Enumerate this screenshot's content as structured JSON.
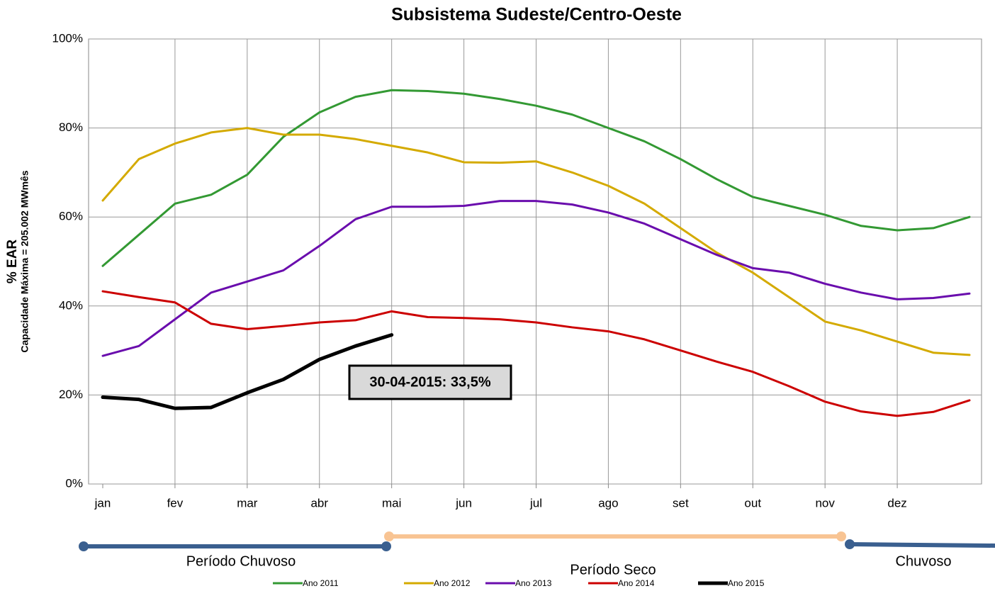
{
  "chart_data": {
    "type": "line",
    "title": "Subsistema Sudeste/Centro-Oeste",
    "y_label": "% EAR",
    "y_sublabel": "Capacidade Máxima = 205.002 MWmês",
    "categories": [
      "jan",
      null,
      "fev",
      null,
      "mar",
      null,
      "abr",
      null,
      "mai",
      null,
      "jun",
      null,
      "jul",
      null,
      "ago",
      null,
      "set",
      null,
      "out",
      null,
      "nov",
      null,
      "dez",
      null,
      null
    ],
    "ylim": [
      0,
      100
    ],
    "yticks": [
      {
        "value": 0,
        "label": "0%"
      },
      {
        "value": 20,
        "label": "20%"
      },
      {
        "value": 40,
        "label": "40%"
      },
      {
        "value": 60,
        "label": "60%"
      },
      {
        "value": 80,
        "label": "80%"
      },
      {
        "value": 100,
        "label": "100%"
      }
    ],
    "grid": true,
    "series": [
      {
        "name": "Ano 2011",
        "color": "#339933",
        "line_width": 3,
        "values": [
          49,
          56,
          63,
          65,
          69.5,
          78,
          83.5,
          87,
          88.5,
          88.3,
          87.7,
          86.5,
          85,
          83,
          80,
          77,
          73,
          68.5,
          64.5,
          62.5,
          60.5,
          58,
          57,
          57.5,
          60
        ]
      },
      {
        "name": "Ano 2012",
        "color": "#d4aa00",
        "line_width": 3,
        "values": [
          63.7,
          73,
          76.5,
          79,
          80,
          78.5,
          78.5,
          77.5,
          76,
          74.5,
          72.3,
          72.2,
          72.5,
          70,
          67,
          63,
          57.5,
          52,
          47.5,
          42,
          36.5,
          34.5,
          32,
          29.5,
          29
        ]
      },
      {
        "name": "Ano 2013",
        "color": "#6a0dad",
        "line_width": 3,
        "values": [
          28.8,
          31,
          37,
          43,
          45.5,
          48,
          53.5,
          59.5,
          62.3,
          62.3,
          62.5,
          63.6,
          63.6,
          62.8,
          61,
          58.5,
          55,
          51.5,
          48.5,
          47.5,
          45,
          43,
          41.5,
          41.8,
          42.8
        ]
      },
      {
        "name": "Ano 2014",
        "color": "#cc0000",
        "line_width": 3,
        "values": [
          43.3,
          42,
          40.8,
          36,
          34.8,
          35.5,
          36.3,
          36.8,
          38.8,
          37.5,
          37.3,
          37,
          36.3,
          35.2,
          34.3,
          32.5,
          30,
          27.5,
          25.2,
          22,
          18.5,
          16.3,
          15.3,
          16.2,
          18.8
        ]
      },
      {
        "name": "Ano 2015",
        "color": "#000000",
        "line_width": 5,
        "values": [
          19.5,
          19,
          17,
          17.2,
          20.5,
          23.5,
          28,
          31,
          33.5,
          null,
          null,
          null,
          null,
          null,
          null,
          null,
          null,
          null,
          null,
          null,
          null,
          null,
          null,
          null,
          null
        ]
      }
    ],
    "annotation": "30-04-2015: 33,5%",
    "periods": [
      "Período Chuvoso",
      "Período Seco",
      "Chuvoso"
    ],
    "legend": "bottom"
  }
}
